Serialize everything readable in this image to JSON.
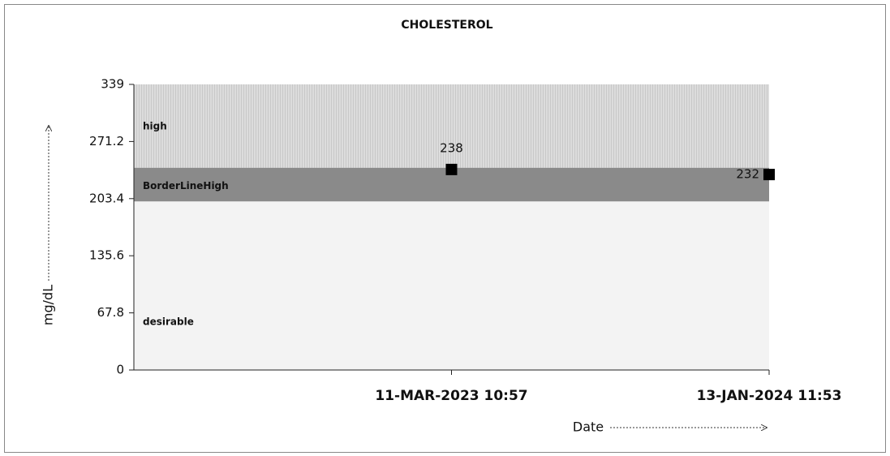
{
  "chart_data": {
    "type": "scatter",
    "title": "CHOLESTEROL",
    "x_label": "Date",
    "y_label": "mg/dL",
    "categories": [
      null,
      "11-MAR-2023 10:57",
      "13-JAN-2024 11:53"
    ],
    "values": [
      null,
      238,
      232
    ],
    "color": "#000000",
    "ylim": [
      0,
      339
    ],
    "yticks": [
      0,
      67.8,
      135.6,
      203.4,
      271.2,
      339
    ],
    "bands": [
      {
        "name": "high",
        "from": 240,
        "to": 339,
        "color": "#dcdcdc"
      },
      {
        "name": "BorderLineHigh",
        "from": 200,
        "to": 240,
        "color": "#8a8a8a"
      },
      {
        "name": "desirable",
        "from": 0,
        "to": 200,
        "color": "#f3f3f3"
      }
    ]
  }
}
